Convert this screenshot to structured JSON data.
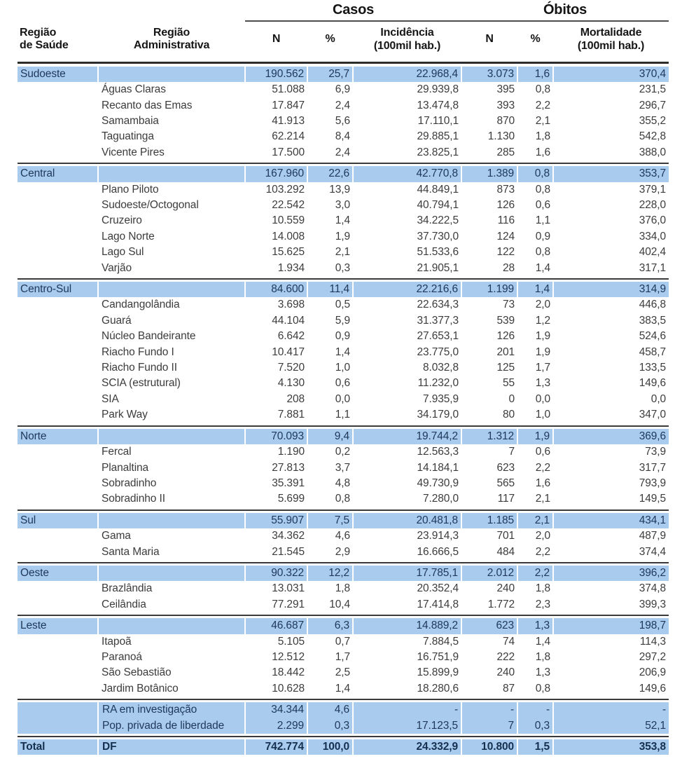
{
  "colors": {
    "row_highlight": "#a8cbee",
    "highlight_text": "#20395a",
    "body_text": "#3c3c3c",
    "rule_line": "#3a3a3a",
    "background": "#ffffff"
  },
  "chart_data": {
    "type": "table",
    "title": "",
    "groups": {
      "casos": "Casos",
      "obitos": "Óbitos"
    },
    "col_labels": {
      "region_saude": "Região\nde Saúde",
      "region_admin": "Região\nAdministrativa",
      "n": "N",
      "pct": "%",
      "incidencia": "Incidência\n(100mil hab.)",
      "mortalidade": "Mortalidade\n(100mil hab.)"
    },
    "columns": [
      "Região de Saúde",
      "Região Administrativa",
      "Casos N",
      "Casos %",
      "Incidência (100mil hab.)",
      "Óbitos N",
      "Óbitos %",
      "Mortalidade (100mil hab.)"
    ],
    "sections": [
      {
        "region": "Sudoeste",
        "summary": [
          "190.562",
          "25,7",
          "22.968,4",
          "3.073",
          "1,6",
          "370,4"
        ],
        "rows": [
          {
            "name": "Águas Claras",
            "values": [
              "51.088",
              "6,9",
              "29.939,8",
              "395",
              "0,8",
              "231,5"
            ]
          },
          {
            "name": "Recanto das Emas",
            "values": [
              "17.847",
              "2,4",
              "13.474,8",
              "393",
              "2,2",
              "296,7"
            ]
          },
          {
            "name": "Samambaia",
            "values": [
              "41.913",
              "5,6",
              "17.110,1",
              "870",
              "2,1",
              "355,2"
            ]
          },
          {
            "name": "Taguatinga",
            "values": [
              "62.214",
              "8,4",
              "29.885,1",
              "1.130",
              "1,8",
              "542,8"
            ]
          },
          {
            "name": "Vicente Pires",
            "values": [
              "17.500",
              "2,4",
              "23.825,1",
              "285",
              "1,6",
              "388,0"
            ]
          }
        ]
      },
      {
        "region": "Central",
        "summary": [
          "167.960",
          "22,6",
          "42.770,8",
          "1.389",
          "0,8",
          "353,7"
        ],
        "rows": [
          {
            "name": "Plano Piloto",
            "values": [
              "103.292",
              "13,9",
              "44.849,1",
              "873",
              "0,8",
              "379,1"
            ]
          },
          {
            "name": "Sudoeste/Octogonal",
            "values": [
              "22.542",
              "3,0",
              "40.794,1",
              "126",
              "0,6",
              "228,0"
            ]
          },
          {
            "name": "Cruzeiro",
            "values": [
              "10.559",
              "1,4",
              "34.222,5",
              "116",
              "1,1",
              "376,0"
            ]
          },
          {
            "name": "Lago Norte",
            "values": [
              "14.008",
              "1,9",
              "37.730,0",
              "124",
              "0,9",
              "334,0"
            ]
          },
          {
            "name": "Lago Sul",
            "values": [
              "15.625",
              "2,1",
              "51.533,6",
              "122",
              "0,8",
              "402,4"
            ]
          },
          {
            "name": "Varjão",
            "values": [
              "1.934",
              "0,3",
              "21.905,1",
              "28",
              "1,4",
              "317,1"
            ]
          }
        ]
      },
      {
        "region": "Centro-Sul",
        "summary": [
          "84.600",
          "11,4",
          "22.216,6",
          "1.199",
          "1,4",
          "314,9"
        ],
        "rows": [
          {
            "name": "Candangolândia",
            "values": [
              "3.698",
              "0,5",
              "22.634,3",
              "73",
              "2,0",
              "446,8"
            ]
          },
          {
            "name": "Guará",
            "values": [
              "44.104",
              "5,9",
              "31.377,3",
              "539",
              "1,2",
              "383,5"
            ]
          },
          {
            "name": "Núcleo Bandeirante",
            "values": [
              "6.642",
              "0,9",
              "27.653,1",
              "126",
              "1,9",
              "524,6"
            ]
          },
          {
            "name": "Riacho Fundo I",
            "values": [
              "10.417",
              "1,4",
              "23.775,0",
              "201",
              "1,9",
              "458,7"
            ]
          },
          {
            "name": "Riacho Fundo II",
            "values": [
              "7.520",
              "1,0",
              "8.032,8",
              "125",
              "1,7",
              "133,5"
            ]
          },
          {
            "name": "SCIA (estrutural)",
            "values": [
              "4.130",
              "0,6",
              "11.232,0",
              "55",
              "1,3",
              "149,6"
            ]
          },
          {
            "name": "SIA",
            "values": [
              "208",
              "0,0",
              "7.935,9",
              "0",
              "0,0",
              "0,0"
            ]
          },
          {
            "name": "Park Way",
            "values": [
              "7.881",
              "1,1",
              "34.179,0",
              "80",
              "1,0",
              "347,0"
            ]
          }
        ]
      },
      {
        "region": "Norte",
        "summary": [
          "70.093",
          "9,4",
          "19.744,2",
          "1.312",
          "1,9",
          "369,6"
        ],
        "rows": [
          {
            "name": "Fercal",
            "values": [
              "1.190",
              "0,2",
              "12.563,3",
              "7",
              "0,6",
              "73,9"
            ]
          },
          {
            "name": "Planaltina",
            "values": [
              "27.813",
              "3,7",
              "14.184,1",
              "623",
              "2,2",
              "317,7"
            ]
          },
          {
            "name": "Sobradinho",
            "values": [
              "35.391",
              "4,8",
              "49.730,9",
              "565",
              "1,6",
              "793,9"
            ]
          },
          {
            "name": "Sobradinho II",
            "values": [
              "5.699",
              "0,8",
              "7.280,0",
              "117",
              "2,1",
              "149,5"
            ]
          }
        ]
      },
      {
        "region": "Sul",
        "summary": [
          "55.907",
          "7,5",
          "20.481,8",
          "1.185",
          "2,1",
          "434,1"
        ],
        "rows": [
          {
            "name": "Gama",
            "values": [
              "34.362",
              "4,6",
              "23.914,3",
              "701",
              "2,0",
              "487,9"
            ]
          },
          {
            "name": "Santa Maria",
            "values": [
              "21.545",
              "2,9",
              "16.666,5",
              "484",
              "2,2",
              "374,4"
            ]
          }
        ]
      },
      {
        "region": "Oeste",
        "summary": [
          "90.322",
          "12,2",
          "17.785,1",
          "2.012",
          "2,2",
          "396,2"
        ],
        "rows": [
          {
            "name": "Brazlândia",
            "values": [
              "13.031",
              "1,8",
              "20.352,4",
              "240",
              "1,8",
              "374,8"
            ]
          },
          {
            "name": "Ceilândia",
            "values": [
              "77.291",
              "10,4",
              "17.414,8",
              "1.772",
              "2,3",
              "399,3"
            ]
          }
        ]
      },
      {
        "region": "Leste",
        "summary": [
          "46.687",
          "6,3",
          "14.889,2",
          "623",
          "1,3",
          "198,7"
        ],
        "rows": [
          {
            "name": "Itapoã",
            "values": [
              "5.105",
              "0,7",
              "7.884,5",
              "74",
              "1,4",
              "114,3"
            ]
          },
          {
            "name": "Paranoá",
            "values": [
              "12.512",
              "1,7",
              "16.751,9",
              "222",
              "1,8",
              "297,2"
            ]
          },
          {
            "name": "São Sebastião",
            "values": [
              "18.442",
              "2,5",
              "15.899,9",
              "240",
              "1,3",
              "206,9"
            ]
          },
          {
            "name": "Jardim Botânico",
            "values": [
              "10.628",
              "1,4",
              "18.280,6",
              "87",
              "0,8",
              "149,6"
            ]
          }
        ]
      }
    ],
    "footer_rows": [
      {
        "name": "RA em investigação",
        "values": [
          "34.344",
          "4,6",
          "-",
          "-",
          "-",
          "-"
        ]
      },
      {
        "name": "Pop. privada de liberdade",
        "values": [
          "2.299",
          "0,3",
          "17.123,5",
          "7",
          "0,3",
          "52,1"
        ]
      }
    ],
    "total_row": {
      "label": "Total",
      "name": "DF",
      "values": [
        "742.774",
        "100,0",
        "24.332,9",
        "10.800",
        "1,5",
        "353,8"
      ]
    }
  }
}
